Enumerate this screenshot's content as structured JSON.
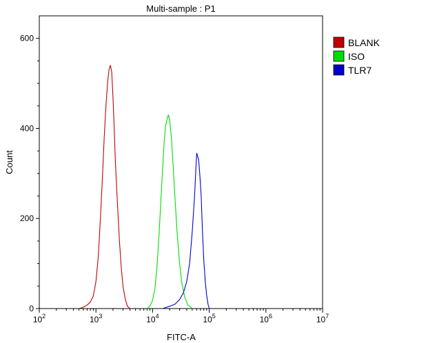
{
  "chart_data": {
    "type": "line",
    "title": "Multi-sample : P1",
    "xlabel": "FITC-A",
    "ylabel": "Count",
    "xscale": "log",
    "xlim": [
      100,
      10000000
    ],
    "ylim": [
      0,
      650
    ],
    "x_ticks": [
      {
        "base": "10",
        "exp": "2",
        "value": 100
      },
      {
        "base": "10",
        "exp": "3",
        "value": 1000
      },
      {
        "base": "10",
        "exp": "4",
        "value": 10000
      },
      {
        "base": "10",
        "exp": "5",
        "value": 100000
      },
      {
        "base": "10",
        "exp": "6",
        "value": 1000000
      },
      {
        "base": "10",
        "exp": "7",
        "value": 10000000
      }
    ],
    "y_ticks": [
      0,
      200,
      400,
      600
    ],
    "grid": false,
    "legend_position": "top-right-outside",
    "series": [
      {
        "name": "BLANK",
        "color": "#c00000",
        "points": [
          [
            500,
            0
          ],
          [
            600,
            3
          ],
          [
            700,
            8
          ],
          [
            800,
            15
          ],
          [
            900,
            28
          ],
          [
            1000,
            60
          ],
          [
            1100,
            115
          ],
          [
            1200,
            200
          ],
          [
            1300,
            290
          ],
          [
            1400,
            380
          ],
          [
            1500,
            450
          ],
          [
            1600,
            500
          ],
          [
            1700,
            530
          ],
          [
            1800,
            540
          ],
          [
            1900,
            525
          ],
          [
            2000,
            470
          ],
          [
            2100,
            400
          ],
          [
            2200,
            330
          ],
          [
            2400,
            230
          ],
          [
            2600,
            150
          ],
          [
            2800,
            90
          ],
          [
            3000,
            50
          ],
          [
            3300,
            20
          ],
          [
            3600,
            5
          ],
          [
            4000,
            0
          ]
        ]
      },
      {
        "name": "ISO",
        "color": "#00dd00",
        "points": [
          [
            8000,
            0
          ],
          [
            9000,
            5
          ],
          [
            10000,
            18
          ],
          [
            11000,
            45
          ],
          [
            12000,
            95
          ],
          [
            13000,
            165
          ],
          [
            14000,
            240
          ],
          [
            15000,
            310
          ],
          [
            16000,
            370
          ],
          [
            17000,
            405
          ],
          [
            18000,
            420
          ],
          [
            19000,
            430
          ],
          [
            20000,
            420
          ],
          [
            21500,
            380
          ],
          [
            23000,
            320
          ],
          [
            25000,
            240
          ],
          [
            27000,
            170
          ],
          [
            30000,
            100
          ],
          [
            33000,
            55
          ],
          [
            37000,
            25
          ],
          [
            42000,
            8
          ],
          [
            50000,
            0
          ]
        ]
      },
      {
        "name": "TLR7",
        "color": "#0000cc",
        "points": [
          [
            15000,
            0
          ],
          [
            20000,
            5
          ],
          [
            25000,
            10
          ],
          [
            30000,
            20
          ],
          [
            35000,
            35
          ],
          [
            40000,
            60
          ],
          [
            45000,
            100
          ],
          [
            50000,
            170
          ],
          [
            55000,
            250
          ],
          [
            58000,
            310
          ],
          [
            60000,
            345
          ],
          [
            62000,
            340
          ],
          [
            65000,
            330
          ],
          [
            68000,
            300
          ],
          [
            72000,
            250
          ],
          [
            76000,
            170
          ],
          [
            80000,
            110
          ],
          [
            85000,
            60
          ],
          [
            90000,
            30
          ],
          [
            95000,
            10
          ],
          [
            100000,
            0
          ]
        ]
      }
    ]
  }
}
